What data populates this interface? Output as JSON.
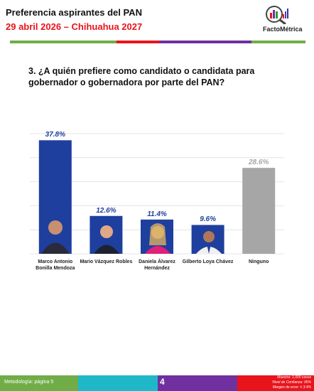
{
  "header": {
    "title": "Preferencia aspirantes del PAN",
    "subtitle": "29 abril 2026 – Chihuahua 2027",
    "logo": "FactoMétrica"
  },
  "question": "3. ¿A quién prefiere como candidato o candidata para gobernador o gobernadora por parte del PAN?",
  "chart_data": {
    "type": "bar",
    "categories": [
      "Marco Antonio Bonilla Mendoza",
      "Mario Vázquez Robles",
      "Daniela Álvarez Hernández",
      "Gilberto Loya Chávez",
      "Ninguno"
    ],
    "values": [
      37.8,
      12.6,
      11.4,
      9.6,
      28.6
    ],
    "value_labels": [
      "37.8%",
      "12.6%",
      "11.4%",
      "9.6%",
      "28.6%"
    ],
    "colors": [
      "#1f3f9f",
      "#1f3f9f",
      "#1f3f9f",
      "#1f3f9f",
      "#a6a6a6"
    ],
    "ylim": [
      0,
      40
    ],
    "yticks": [
      0,
      8,
      16,
      24,
      32,
      40
    ],
    "grid": true
  },
  "footer": {
    "methodology": "Metodología: página 5",
    "page": "4",
    "notes": [
      "Muestra: 1,000 casos",
      "Nivel de Confianza: 95%",
      "Margen de error: ± 3.4%"
    ]
  }
}
